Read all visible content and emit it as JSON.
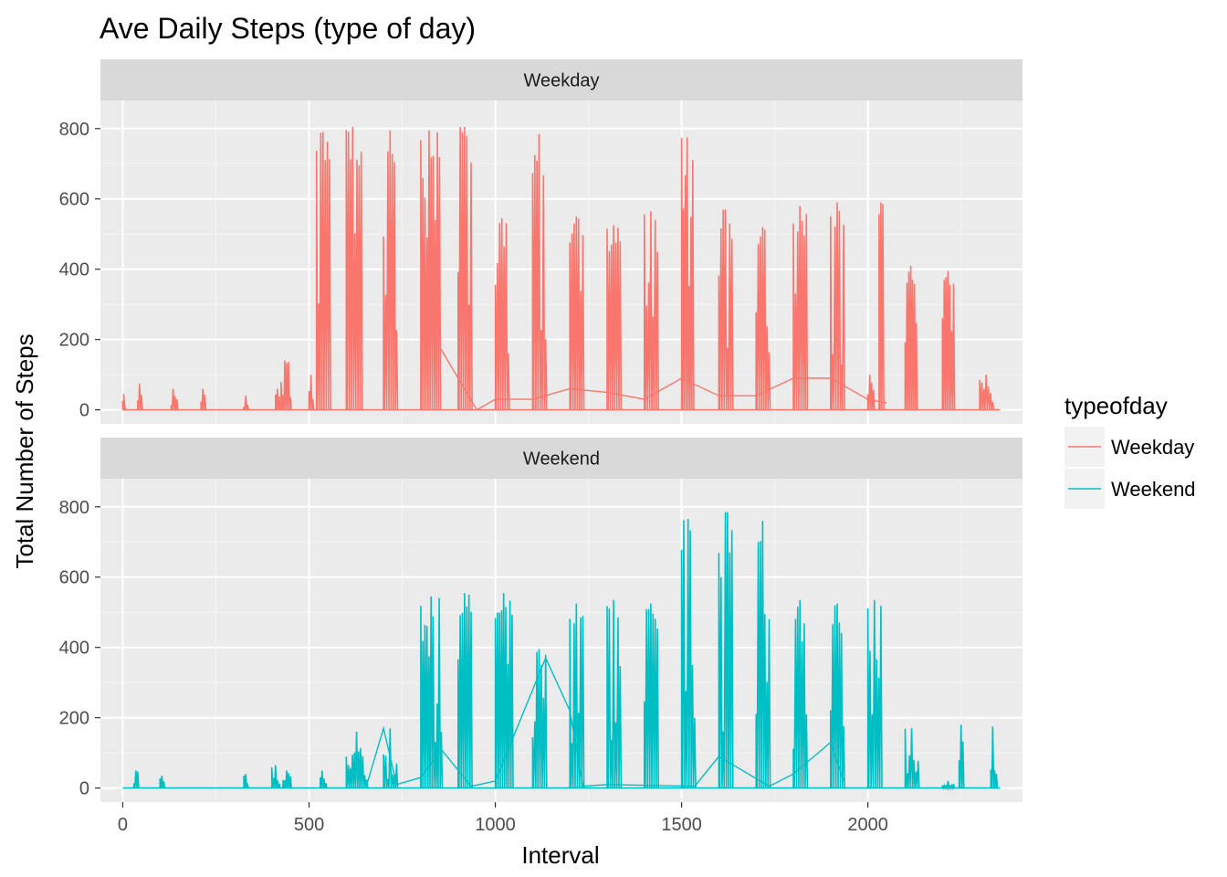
{
  "chart_data": {
    "type": "line",
    "title": "Ave Daily Steps (type of day)",
    "xlabel": "Interval",
    "ylabel": "Total Number of Steps",
    "xlim": [
      -60,
      2415
    ],
    "ylim": [
      -40,
      880
    ],
    "x_ticks": [
      0,
      500,
      1000,
      1500,
      2000
    ],
    "x_tick_labels": [
      "0",
      "500",
      "1000",
      "1500",
      "2000"
    ],
    "y_ticks": [
      0,
      200,
      400,
      600,
      800
    ],
    "y_tick_labels": [
      "0",
      "200",
      "400",
      "600",
      "800"
    ],
    "grid": true,
    "facets": [
      "Weekday",
      "Weekend"
    ],
    "legend": {
      "title": "typeofday",
      "position": "right",
      "entries": [
        "Weekday",
        "Weekend"
      ]
    },
    "series": [
      {
        "name": "Weekday",
        "color": "#F8766D",
        "blocks": [
          {
            "start": 0,
            "end": 5,
            "peak": 45
          },
          {
            "start": 40,
            "end": 50,
            "peak": 75
          },
          {
            "start": 130,
            "end": 145,
            "peak": 60
          },
          {
            "start": 210,
            "end": 220,
            "peak": 60
          },
          {
            "start": 325,
            "end": 335,
            "peak": 40
          },
          {
            "start": 410,
            "end": 420,
            "peak": 60
          },
          {
            "start": 425,
            "end": 450,
            "peak": 140
          },
          {
            "start": 500,
            "end": 510,
            "peak": 100
          },
          {
            "start": 520,
            "end": 555,
            "peak": 790
          },
          {
            "start": 600,
            "end": 640,
            "peak": 805
          },
          {
            "start": 700,
            "end": 735,
            "peak": 795
          },
          {
            "start": 800,
            "end": 850,
            "peak": 795
          },
          {
            "start": 900,
            "end": 935,
            "peak": 805
          },
          {
            "start": 1000,
            "end": 1035,
            "peak": 545
          },
          {
            "start": 1100,
            "end": 1135,
            "peak": 785
          },
          {
            "start": 1200,
            "end": 1235,
            "peak": 550
          },
          {
            "start": 1300,
            "end": 1335,
            "peak": 525
          },
          {
            "start": 1400,
            "end": 1435,
            "peak": 565
          },
          {
            "start": 1500,
            "end": 1530,
            "peak": 775
          },
          {
            "start": 1600,
            "end": 1635,
            "peak": 570
          },
          {
            "start": 1700,
            "end": 1735,
            "peak": 520
          },
          {
            "start": 1800,
            "end": 1835,
            "peak": 580
          },
          {
            "start": 1900,
            "end": 1935,
            "peak": 590
          },
          {
            "start": 2000,
            "end": 2015,
            "peak": 100
          },
          {
            "start": 2030,
            "end": 2040,
            "peak": 590
          },
          {
            "start": 2100,
            "end": 2130,
            "peak": 410
          },
          {
            "start": 2200,
            "end": 2230,
            "peak": 395
          },
          {
            "start": 2300,
            "end": 2335,
            "peak": 100
          }
        ],
        "trend": [
          [
            850,
            180
          ],
          [
            950,
            0
          ],
          [
            1000,
            30
          ],
          [
            1100,
            30
          ],
          [
            1200,
            60
          ],
          [
            1300,
            50
          ],
          [
            1400,
            30
          ],
          [
            1500,
            90
          ],
          [
            1600,
            40
          ],
          [
            1700,
            40
          ],
          [
            1800,
            90
          ],
          [
            1900,
            90
          ],
          [
            2000,
            30
          ],
          [
            2050,
            20
          ]
        ]
      },
      {
        "name": "Weekend",
        "color": "#00BFC4",
        "blocks": [
          {
            "start": 30,
            "end": 40,
            "peak": 50
          },
          {
            "start": 100,
            "end": 110,
            "peak": 35
          },
          {
            "start": 325,
            "end": 335,
            "peak": 40
          },
          {
            "start": 400,
            "end": 420,
            "peak": 65
          },
          {
            "start": 430,
            "end": 450,
            "peak": 50
          },
          {
            "start": 530,
            "end": 545,
            "peak": 50
          },
          {
            "start": 600,
            "end": 655,
            "peak": 160
          },
          {
            "start": 700,
            "end": 735,
            "peak": 170
          },
          {
            "start": 800,
            "end": 855,
            "peak": 545
          },
          {
            "start": 900,
            "end": 935,
            "peak": 555
          },
          {
            "start": 1000,
            "end": 1045,
            "peak": 555
          },
          {
            "start": 1100,
            "end": 1135,
            "peak": 395
          },
          {
            "start": 1200,
            "end": 1235,
            "peak": 525
          },
          {
            "start": 1300,
            "end": 1335,
            "peak": 535
          },
          {
            "start": 1400,
            "end": 1435,
            "peak": 525
          },
          {
            "start": 1500,
            "end": 1535,
            "peak": 765
          },
          {
            "start": 1600,
            "end": 1635,
            "peak": 785
          },
          {
            "start": 1700,
            "end": 1735,
            "peak": 760
          },
          {
            "start": 1800,
            "end": 1835,
            "peak": 535
          },
          {
            "start": 1900,
            "end": 1935,
            "peak": 525
          },
          {
            "start": 2000,
            "end": 2035,
            "peak": 535
          },
          {
            "start": 2100,
            "end": 2135,
            "peak": 170
          },
          {
            "start": 2200,
            "end": 2230,
            "peak": 20
          },
          {
            "start": 2245,
            "end": 2255,
            "peak": 180
          },
          {
            "start": 2330,
            "end": 2345,
            "peak": 175
          }
        ],
        "trend": [
          [
            655,
            10
          ],
          [
            700,
            170
          ],
          [
            735,
            10
          ],
          [
            800,
            30
          ],
          [
            855,
            110
          ],
          [
            935,
            5
          ],
          [
            1000,
            20
          ],
          [
            1135,
            370
          ],
          [
            1200,
            220
          ],
          [
            1235,
            5
          ],
          [
            1300,
            10
          ],
          [
            1535,
            5
          ],
          [
            1600,
            90
          ],
          [
            1735,
            5
          ],
          [
            1800,
            40
          ],
          [
            1900,
            130
          ],
          [
            1935,
            20
          ]
        ]
      }
    ]
  }
}
